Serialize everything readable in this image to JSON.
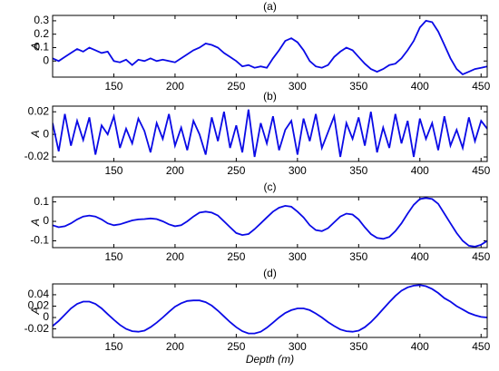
{
  "chart_data": [
    {
      "type": "line",
      "title": "(a)",
      "ylabel": "A",
      "color": "#0a0ae6",
      "xlim": [
        100,
        455
      ],
      "xticks": [
        150,
        200,
        250,
        300,
        350,
        400,
        450
      ],
      "ylim": [
        -0.12,
        0.34
      ],
      "yticks": [
        0,
        0.1,
        0.2,
        0.3
      ],
      "x": [
        100,
        105,
        110,
        115,
        120,
        125,
        130,
        135,
        140,
        145,
        150,
        155,
        160,
        165,
        170,
        175,
        180,
        185,
        190,
        195,
        200,
        205,
        210,
        215,
        220,
        225,
        230,
        235,
        240,
        245,
        250,
        255,
        260,
        265,
        270,
        275,
        280,
        285,
        290,
        295,
        300,
        305,
        310,
        315,
        320,
        325,
        330,
        335,
        340,
        345,
        350,
        355,
        360,
        365,
        370,
        375,
        380,
        385,
        390,
        395,
        400,
        405,
        410,
        415,
        420,
        425,
        430,
        435,
        440,
        445,
        450,
        455
      ],
      "values": [
        0.02,
        0.0,
        0.03,
        0.06,
        0.09,
        0.07,
        0.1,
        0.08,
        0.06,
        0.07,
        0.0,
        -0.01,
        0.01,
        -0.03,
        0.01,
        0.0,
        0.02,
        0.0,
        0.01,
        0.0,
        -0.01,
        0.02,
        0.05,
        0.08,
        0.1,
        0.13,
        0.12,
        0.1,
        0.06,
        0.03,
        0.0,
        -0.04,
        -0.03,
        -0.05,
        -0.04,
        -0.05,
        0.02,
        0.08,
        0.15,
        0.17,
        0.14,
        0.08,
        0.0,
        -0.04,
        -0.05,
        -0.03,
        0.03,
        0.07,
        0.1,
        0.08,
        0.03,
        -0.02,
        -0.06,
        -0.08,
        -0.06,
        -0.03,
        -0.02,
        0.02,
        0.08,
        0.15,
        0.25,
        0.3,
        0.29,
        0.22,
        0.12,
        0.02,
        -0.06,
        -0.1,
        -0.08,
        -0.06,
        -0.05,
        -0.04
      ]
    },
    {
      "type": "line",
      "title": "(b)",
      "ylabel": "A",
      "color": "#0a0ae6",
      "xlim": [
        100,
        455
      ],
      "xticks": [
        150,
        200,
        250,
        300,
        350,
        400,
        450
      ],
      "ylim": [
        -0.024,
        0.025
      ],
      "yticks": [
        -0.02,
        0,
        0.02
      ],
      "x": [
        100,
        105,
        110,
        115,
        120,
        125,
        130,
        135,
        140,
        145,
        150,
        155,
        160,
        165,
        170,
        175,
        180,
        185,
        190,
        195,
        200,
        205,
        210,
        215,
        220,
        225,
        230,
        235,
        240,
        245,
        250,
        255,
        260,
        265,
        270,
        275,
        280,
        285,
        290,
        295,
        300,
        305,
        310,
        315,
        320,
        325,
        330,
        335,
        340,
        345,
        350,
        355,
        360,
        365,
        370,
        375,
        380,
        385,
        390,
        395,
        400,
        405,
        410,
        415,
        420,
        425,
        430,
        435,
        440,
        445,
        450,
        455
      ],
      "values": [
        0.01,
        -0.015,
        0.018,
        -0.01,
        0.012,
        -0.005,
        0.015,
        -0.018,
        0.008,
        0.0,
        0.016,
        -0.012,
        0.005,
        -0.008,
        0.014,
        0.003,
        -0.016,
        0.01,
        -0.004,
        0.018,
        -0.01,
        0.006,
        -0.014,
        0.012,
        0.0,
        -0.018,
        0.015,
        -0.006,
        0.02,
        -0.012,
        0.008,
        -0.016,
        0.022,
        -0.02,
        0.01,
        -0.008,
        0.016,
        -0.014,
        0.004,
        0.012,
        -0.018,
        0.014,
        -0.006,
        0.018,
        -0.012,
        0.002,
        0.016,
        -0.02,
        0.01,
        -0.004,
        0.015,
        -0.01,
        0.02,
        -0.016,
        0.006,
        -0.012,
        0.018,
        -0.008,
        0.012,
        -0.02,
        0.014,
        -0.004,
        0.01,
        -0.014,
        0.016,
        -0.01,
        0.004,
        -0.012,
        0.015,
        -0.006,
        0.012,
        0.005
      ]
    },
    {
      "type": "line",
      "title": "(c)",
      "ylabel": "A",
      "color": "#0a0ae6",
      "xlim": [
        100,
        455
      ],
      "xticks": [
        150,
        200,
        250,
        300,
        350,
        400,
        450
      ],
      "ylim": [
        -0.135,
        0.126
      ],
      "yticks": [
        -0.1,
        0,
        0.1
      ],
      "x": [
        100,
        105,
        110,
        115,
        120,
        125,
        130,
        135,
        140,
        145,
        150,
        155,
        160,
        165,
        170,
        175,
        180,
        185,
        190,
        195,
        200,
        205,
        210,
        215,
        220,
        225,
        230,
        235,
        240,
        245,
        250,
        255,
        260,
        265,
        270,
        275,
        280,
        285,
        290,
        295,
        300,
        305,
        310,
        315,
        320,
        325,
        330,
        335,
        340,
        345,
        350,
        355,
        360,
        365,
        370,
        375,
        380,
        385,
        390,
        395,
        400,
        405,
        410,
        415,
        420,
        425,
        430,
        435,
        440,
        445,
        450,
        455
      ],
      "values": [
        -0.02,
        -0.03,
        -0.025,
        -0.01,
        0.01,
        0.025,
        0.03,
        0.025,
        0.01,
        -0.01,
        -0.02,
        -0.015,
        -0.005,
        0.005,
        0.01,
        0.012,
        0.015,
        0.012,
        0.0,
        -0.015,
        -0.025,
        -0.02,
        0.0,
        0.025,
        0.045,
        0.05,
        0.045,
        0.03,
        0.0,
        -0.03,
        -0.06,
        -0.07,
        -0.065,
        -0.04,
        -0.01,
        0.02,
        0.05,
        0.07,
        0.08,
        0.075,
        0.05,
        0.02,
        -0.02,
        -0.045,
        -0.05,
        -0.035,
        -0.005,
        0.025,
        0.04,
        0.035,
        0.01,
        -0.03,
        -0.065,
        -0.085,
        -0.09,
        -0.08,
        -0.05,
        -0.01,
        0.04,
        0.085,
        0.115,
        0.12,
        0.115,
        0.09,
        0.04,
        -0.01,
        -0.06,
        -0.1,
        -0.125,
        -0.13,
        -0.12,
        -0.1
      ]
    },
    {
      "type": "line",
      "title": "(d)",
      "ylabel": "A",
      "xlabel": "Depth (m)",
      "color": "#0a0ae6",
      "xlim": [
        100,
        455
      ],
      "xticks": [
        150,
        200,
        250,
        300,
        350,
        400,
        450
      ],
      "ylim": [
        -0.035,
        0.059
      ],
      "yticks": [
        -0.02,
        0,
        0.02,
        0.04
      ],
      "x": [
        100,
        105,
        110,
        115,
        120,
        125,
        130,
        135,
        140,
        145,
        150,
        155,
        160,
        165,
        170,
        175,
        180,
        185,
        190,
        195,
        200,
        205,
        210,
        215,
        220,
        225,
        230,
        235,
        240,
        245,
        250,
        255,
        260,
        265,
        270,
        275,
        280,
        285,
        290,
        295,
        300,
        305,
        310,
        315,
        320,
        325,
        330,
        335,
        340,
        345,
        350,
        355,
        360,
        365,
        370,
        375,
        380,
        385,
        390,
        395,
        400,
        405,
        410,
        415,
        420,
        425,
        430,
        435,
        440,
        445,
        450,
        455
      ],
      "values": [
        -0.015,
        -0.006,
        0.005,
        0.016,
        0.024,
        0.028,
        0.028,
        0.024,
        0.016,
        0.006,
        -0.004,
        -0.013,
        -0.02,
        -0.024,
        -0.025,
        -0.023,
        -0.017,
        -0.009,
        0.0,
        0.01,
        0.019,
        0.025,
        0.029,
        0.03,
        0.03,
        0.027,
        0.021,
        0.012,
        0.002,
        -0.008,
        -0.017,
        -0.024,
        -0.028,
        -0.028,
        -0.025,
        -0.018,
        -0.009,
        0.0,
        0.008,
        0.013,
        0.016,
        0.016,
        0.013,
        0.007,
        0.0,
        -0.008,
        -0.015,
        -0.021,
        -0.024,
        -0.025,
        -0.023,
        -0.017,
        -0.008,
        0.003,
        0.015,
        0.027,
        0.038,
        0.047,
        0.053,
        0.056,
        0.057,
        0.055,
        0.05,
        0.043,
        0.034,
        0.028,
        0.02,
        0.014,
        0.008,
        0.004,
        0.001,
        0.0
      ]
    }
  ]
}
